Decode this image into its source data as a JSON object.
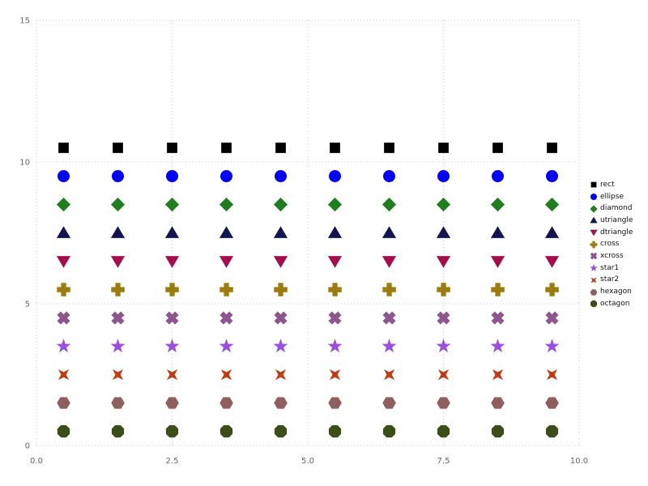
{
  "figure": {
    "background": "#ffffff"
  },
  "axes": {
    "xticks": [
      "0.0",
      "2.5",
      "5.0",
      "7.5",
      "10.0"
    ],
    "xtick_values": [
      0,
      2.5,
      5,
      7.5,
      10
    ],
    "yticks": [
      "0",
      "5",
      "10",
      "15"
    ],
    "ytick_values": [
      0,
      5,
      10,
      15
    ],
    "xlim": [
      0,
      10
    ],
    "ylim": [
      0,
      15
    ],
    "grid_color": "#cccccc",
    "tick_label_color": "#666666"
  },
  "chart_data": {
    "type": "scatter",
    "x": [
      0.5,
      1.5,
      2.5,
      3.5,
      4.5,
      5.5,
      6.5,
      7.5,
      8.5,
      9.5
    ],
    "series": [
      {
        "name": "rect",
        "shape": "rect",
        "color": "#000000",
        "y": 10.5
      },
      {
        "name": "ellipse",
        "shape": "ellipse",
        "color": "#0000ff",
        "y": 9.5
      },
      {
        "name": "diamond",
        "shape": "diamond",
        "color": "#1f7f1f",
        "y": 8.5
      },
      {
        "name": "utriangle",
        "shape": "utriangle",
        "color": "#141452",
        "y": 7.5
      },
      {
        "name": "dtriangle",
        "shape": "dtriangle",
        "color": "#a50d4d",
        "y": 6.5
      },
      {
        "name": "cross",
        "shape": "cross",
        "color": "#9c7c0c",
        "y": 5.5
      },
      {
        "name": "xcross",
        "shape": "xcross",
        "color": "#8d568d",
        "y": 4.5
      },
      {
        "name": "star1",
        "shape": "star1",
        "color": "#9a4fe0",
        "y": 3.5
      },
      {
        "name": "star2",
        "shape": "star2",
        "color": "#c53b11",
        "y": 2.5
      },
      {
        "name": "hexagon",
        "shape": "hexagon",
        "color": "#8f5e5e",
        "y": 1.5
      },
      {
        "name": "octagon",
        "shape": "octagon",
        "color": "#3d4d18",
        "y": 0.5
      }
    ],
    "legend_position": "right",
    "grid": true,
    "xlabel": "",
    "ylabel": ""
  }
}
